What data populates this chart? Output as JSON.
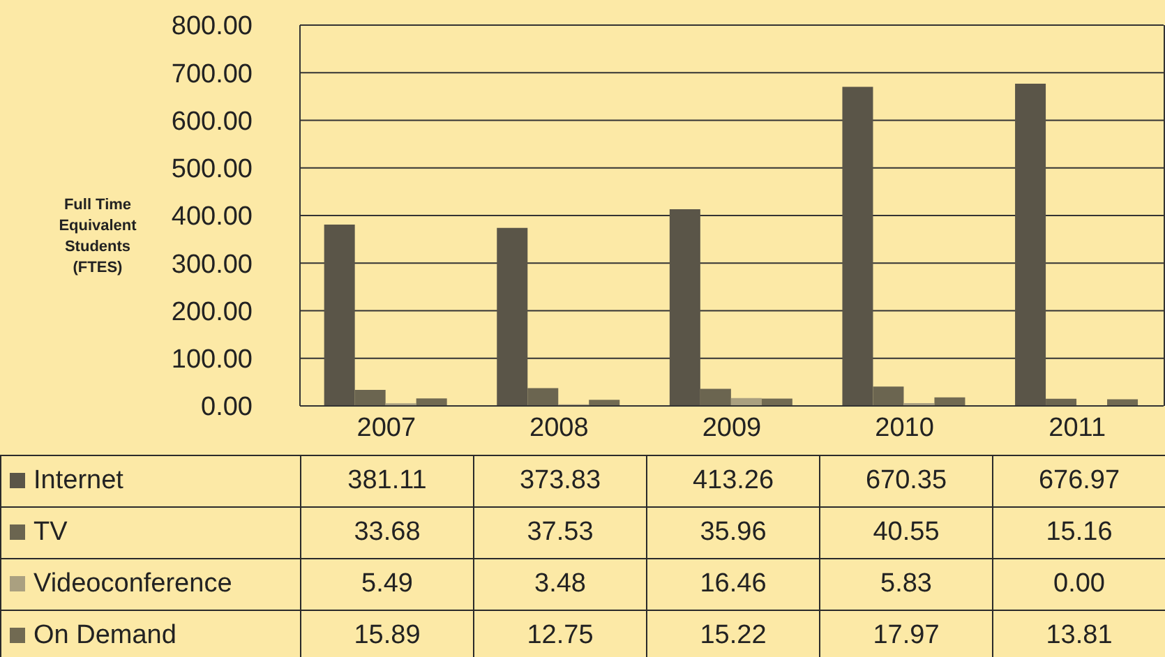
{
  "chart_data": {
    "type": "bar",
    "ylabel": "Full Time Equivalent Students (FTES)",
    "categories": [
      "2007",
      "2008",
      "2009",
      "2010",
      "2011"
    ],
    "series": [
      {
        "name": "Internet",
        "color": "#5a5548",
        "values": [
          381.11,
          373.83,
          413.26,
          670.35,
          676.97
        ],
        "value_labels": [
          "381.11",
          "373.83",
          "413.26",
          "670.35",
          "676.97"
        ]
      },
      {
        "name": "TV",
        "color": "#6b6550",
        "values": [
          33.68,
          37.53,
          35.96,
          40.55,
          15.16
        ],
        "value_labels": [
          "33.68",
          "37.53",
          "35.96",
          "40.55",
          "15.16"
        ]
      },
      {
        "name": "Videoconference",
        "color": "#aaa080",
        "values": [
          5.49,
          3.48,
          16.46,
          5.83,
          0
        ],
        "value_labels": [
          "5.49",
          "3.48",
          "16.46",
          "5.83",
          "0.00"
        ]
      },
      {
        "name": "On Demand",
        "color": "#716a52",
        "values": [
          15.89,
          12.75,
          15.22,
          17.97,
          13.81
        ],
        "value_labels": [
          "15.89",
          "12.75",
          "15.22",
          "17.97",
          "13.81"
        ]
      }
    ],
    "ylim": [
      0,
      800
    ],
    "yticks": [
      {
        "value": 0,
        "label": "0.00"
      },
      {
        "value": 100,
        "label": "100.00"
      },
      {
        "value": 200,
        "label": "200.00"
      },
      {
        "value": 300,
        "label": "300.00"
      },
      {
        "value": 400,
        "label": "400.00"
      },
      {
        "value": 500,
        "label": "500.00"
      },
      {
        "value": 600,
        "label": "600.00"
      },
      {
        "value": 700,
        "label": "700.00"
      },
      {
        "value": 800,
        "label": "800.00"
      }
    ],
    "grid": "y",
    "legend": "bottom"
  }
}
